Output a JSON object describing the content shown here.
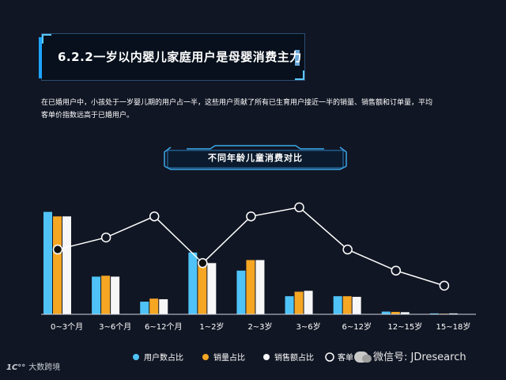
{
  "header": {
    "title": "6.2.2一岁以内婴儿家庭用户是母婴消费主力"
  },
  "paragraph": {
    "line1": "在已婚用户中，小孩处于一岁婴儿期的用户占一半，这些用户贡献了所有已生育用户接近一半的销量、销售额和订单量，平均",
    "line2": "客单价指数远高于已婚用户。"
  },
  "chart_title": "不同年龄儿童消费对比",
  "chart_data": {
    "type": "bar",
    "categories": [
      "0~3个月",
      "3~6个月",
      "6~12个月",
      "1~2岁",
      "2~3岁",
      "3~6岁",
      "6~12岁",
      "12~15岁",
      "15~18岁"
    ],
    "series": [
      {
        "name": "用户数占比",
        "color": "#4fc3f7",
        "values": [
          34,
          12.5,
          4.2,
          20.5,
          14.5,
          6,
          6,
          0.9,
          0.3
        ]
      },
      {
        "name": "销量占比",
        "color": "#f5a623",
        "values": [
          32.5,
          12.8,
          5.2,
          17,
          18,
          7.5,
          6,
          0.8,
          0.2
        ]
      },
      {
        "name": "销售额占比",
        "color": "#f7f7f7",
        "values": [
          32.5,
          12.5,
          5,
          17,
          18,
          7.8,
          5.8,
          0.7,
          0.3
        ]
      }
    ],
    "line_series": {
      "name": "客单价指数",
      "values": [
        21.5,
        25.5,
        32.5,
        17,
        32.5,
        35.5,
        21.5,
        14.5,
        9.5
      ]
    },
    "ylim": [
      0,
      36
    ],
    "legend_position": "bottom"
  },
  "legend": {
    "items": [
      "用户数占比",
      "销量占比",
      "销售额占比",
      "客单"
    ]
  },
  "footer": {
    "logo_text": "大数跨境",
    "watermark": "微信号: JDresearch"
  }
}
